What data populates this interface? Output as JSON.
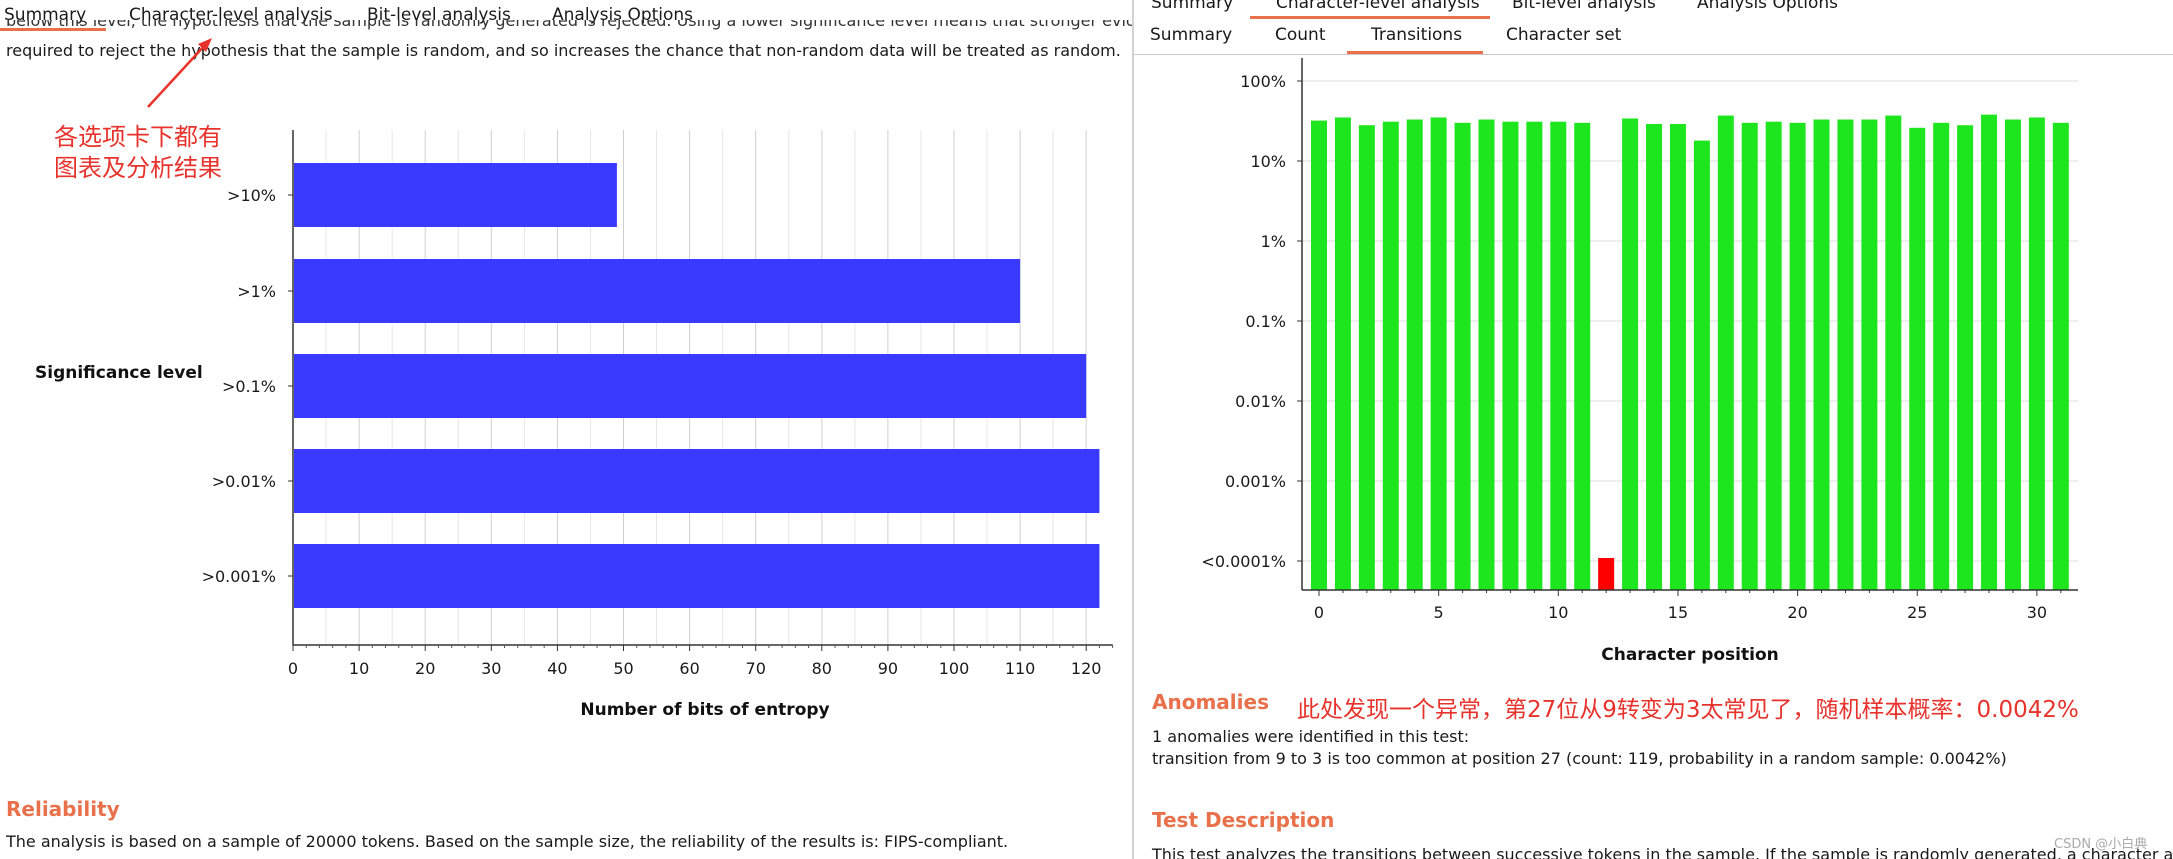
{
  "left": {
    "tabs": [
      {
        "label": "Summary",
        "active": true
      },
      {
        "label": "Character-level analysis",
        "active": false
      },
      {
        "label": "Bit-level analysis",
        "active": false
      },
      {
        "label": "Analysis Options",
        "active": false
      }
    ],
    "intro_line_clipped": "below this level, the hypothesis that the sample is randomly generated is rejected. Using a lower significance level means that stronger evidence is",
    "intro_line": "required to reject the hypothesis that the sample is random, and so increases the chance that non-random data will be treated as random.",
    "annotation": {
      "line1": "各选项卡下都有",
      "line2": "图表及分析结果",
      "color": "#e8332d"
    },
    "reliability": {
      "title": "Reliability",
      "text": "The analysis is based on a sample of 20000 tokens. Based on the sample size, the reliability of the results is: FIPS-compliant."
    }
  },
  "right": {
    "top_tabs": [
      {
        "label": "Summary",
        "active": false
      },
      {
        "label": "Character-level analysis",
        "active": true
      },
      {
        "label": "Bit-level analysis",
        "active": false
      },
      {
        "label": "Analysis Options",
        "active": false
      }
    ],
    "sub_tabs": [
      {
        "label": "Summary",
        "active": false
      },
      {
        "label": "Count",
        "active": false
      },
      {
        "label": "Transitions",
        "active": true
      },
      {
        "label": "Character set",
        "active": false
      }
    ],
    "anomalies": {
      "title": "Anomalies",
      "note": "此处发现一个异常，第27位从9转变为3太常见了，随机样本概率：0.0042%",
      "line1": "1 anomalies were identified in this test:",
      "line2": "transition from 9 to 3 is too common at position 27 (count: 119, probability in a random sample: 0.0042%)"
    },
    "test_description": {
      "title": "Test Description",
      "text": "This test analyzes the transitions between successive tokens in the sample. If the sample is randomly generated, a character at"
    }
  },
  "watermark": "CSDN @小白典",
  "colors": {
    "accent": "#e8704a",
    "note_red": "#e8332d",
    "bar_blue": "#3a3aff",
    "bar_green": "#1ee61e",
    "bar_red": "#ff0000"
  },
  "chart_data": [
    {
      "type": "bar",
      "orientation": "horizontal",
      "categories": [
        ">10%",
        ">1%",
        ">0.1%",
        ">0.01%",
        ">0.001%"
      ],
      "values": [
        49,
        110,
        120,
        122,
        122
      ],
      "xlabel": "Number of bits of entropy",
      "ylabel": "Significance level",
      "xlim": [
        0,
        124
      ],
      "xticks": [
        0,
        10,
        20,
        30,
        40,
        50,
        60,
        70,
        80,
        90,
        100,
        110,
        120
      ],
      "grid": true,
      "color": "#3a3aff"
    },
    {
      "type": "bar",
      "x": [
        0,
        1,
        2,
        3,
        4,
        5,
        6,
        7,
        8,
        9,
        10,
        11,
        12,
        13,
        14,
        15,
        16,
        17,
        18,
        19,
        20,
        21,
        22,
        23,
        24,
        25,
        26,
        27,
        28,
        29,
        30,
        31
      ],
      "values": [
        32,
        35,
        28,
        31,
        33,
        35,
        30,
        33,
        31,
        31,
        31,
        30,
        5e-05,
        34,
        29,
        29,
        18,
        37,
        30,
        31,
        30,
        33,
        33,
        33,
        37,
        26,
        30,
        28,
        38,
        33,
        35,
        30
      ],
      "value_unit": "percent",
      "y_scale": "log",
      "yticks": [
        "100%",
        "10%",
        "1%",
        "0.1%",
        "0.01%",
        "0.001%",
        "<0.0001%"
      ],
      "xticks": [
        0,
        5,
        10,
        15,
        20,
        25,
        30
      ],
      "xlabel": "Character position",
      "ylabel": "",
      "grid": true,
      "highlight_index": 12,
      "color": "#1ee61e",
      "highlight_color": "#ff0000"
    }
  ]
}
